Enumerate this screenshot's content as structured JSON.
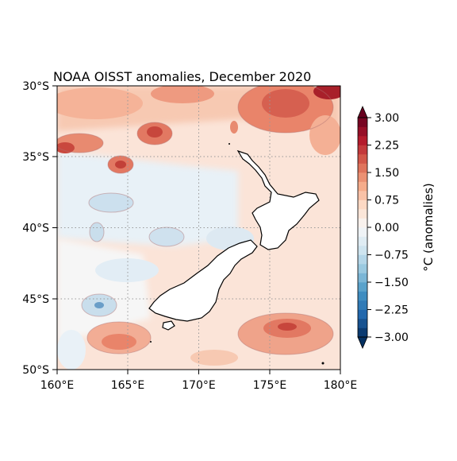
{
  "map": {
    "title": "NOAA OISST anomalies, December 2020",
    "x_ticks": [
      "160°E",
      "165°E",
      "170°E",
      "175°E",
      "180°E"
    ],
    "y_ticks": [
      "30°S",
      "35°S",
      "40°S",
      "45°S",
      "50°S"
    ],
    "lon_range": [
      160,
      180
    ],
    "lat_range": [
      -30,
      -50
    ],
    "gridlines": "dotted"
  },
  "colorbar": {
    "label": "°C (anomalies)",
    "tick_labels": [
      "3.00",
      "2.25",
      "1.50",
      "0.75",
      "0.00",
      "−0.75",
      "−1.50",
      "−2.25",
      "−3.00"
    ],
    "range": [
      -3,
      3
    ],
    "levels": 24,
    "colormap": "RdBu_r",
    "extend": "both"
  }
}
